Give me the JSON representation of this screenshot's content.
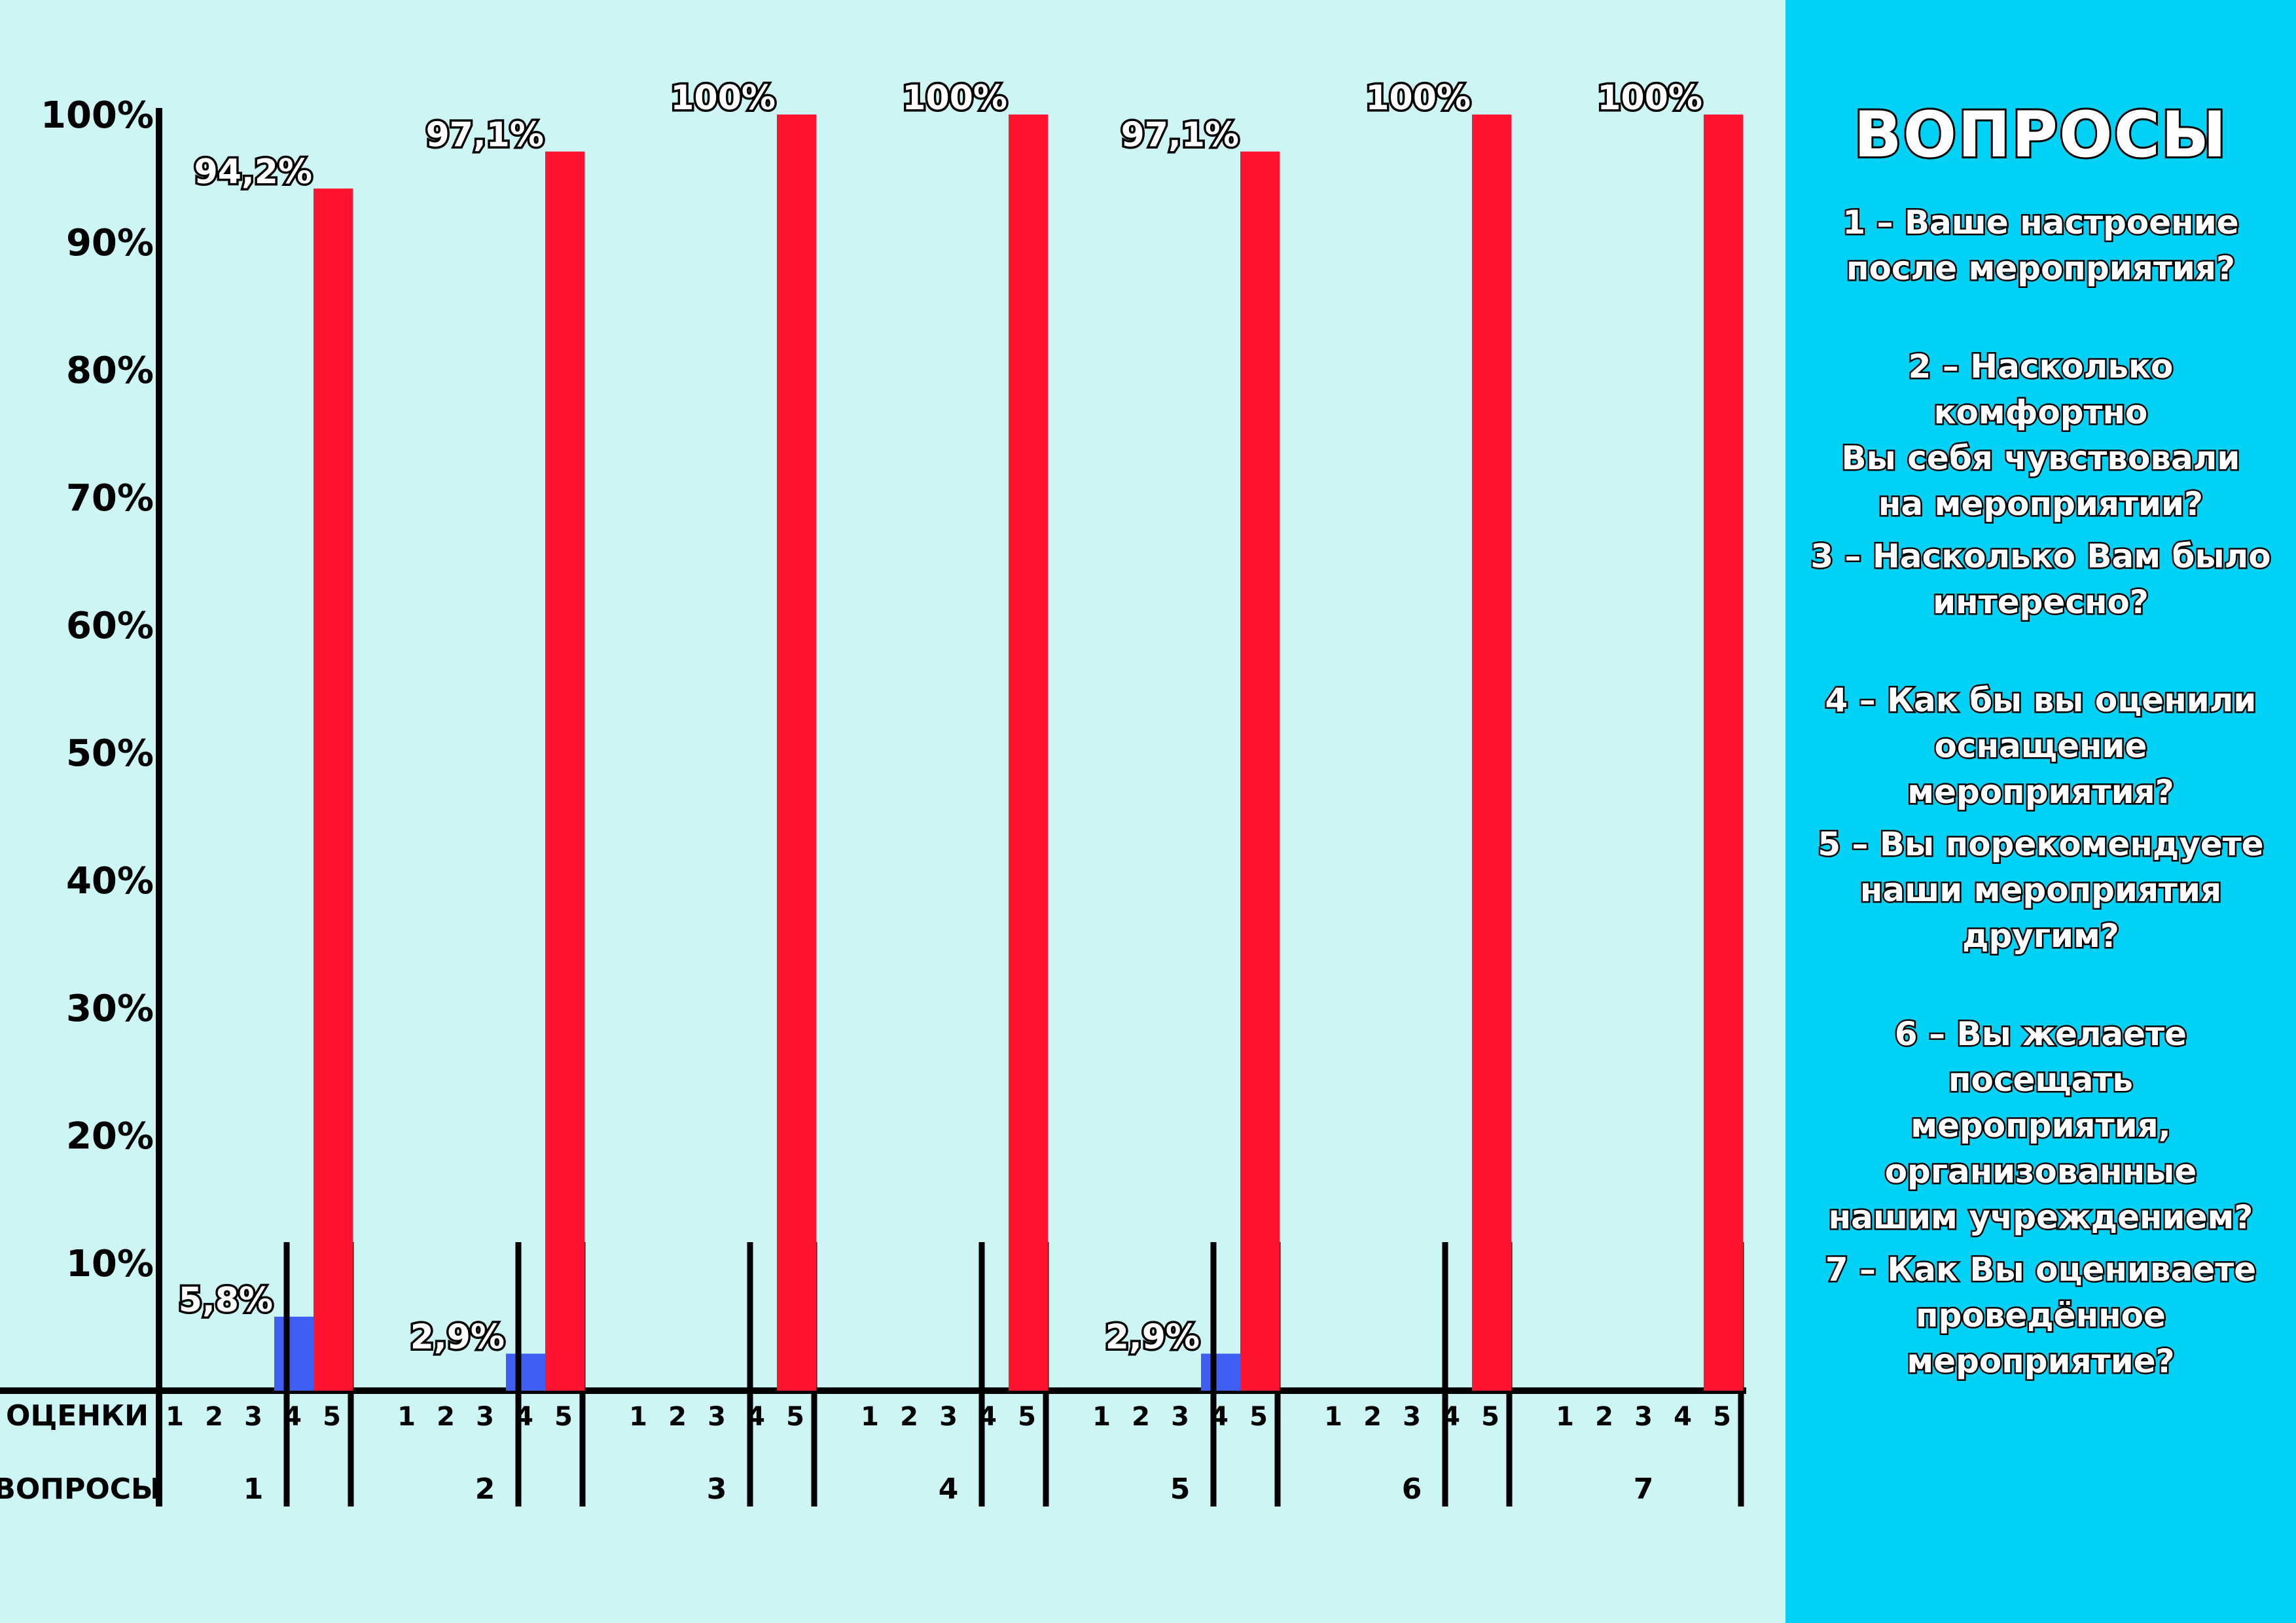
{
  "chart_data": {
    "type": "bar",
    "title": "",
    "ylim": [
      0,
      100
    ],
    "y_ticks": [
      "10%",
      "20%",
      "30%",
      "40%",
      "50%",
      "60%",
      "70%",
      "80%",
      "90%",
      "100%"
    ],
    "row_labels": {
      "scores": "ОЦЕНКИ",
      "questions": "ВОПРОСЫ"
    },
    "score_ticks": [
      "1",
      "2",
      "3",
      "4",
      "5"
    ],
    "groups": [
      {
        "label": "1",
        "values": [
          0,
          0,
          0,
          5.8,
          94.2
        ],
        "labels": [
          "",
          "",
          "",
          "5,8%",
          "94,2%"
        ]
      },
      {
        "label": "2",
        "values": [
          0,
          0,
          0,
          2.9,
          97.1
        ],
        "labels": [
          "",
          "",
          "",
          "2,9%",
          "97,1%"
        ]
      },
      {
        "label": "3",
        "values": [
          0,
          0,
          0,
          0,
          100
        ],
        "labels": [
          "",
          "",
          "",
          "",
          "100%"
        ]
      },
      {
        "label": "4",
        "values": [
          0,
          0,
          0,
          0,
          100
        ],
        "labels": [
          "",
          "",
          "",
          "",
          "100%"
        ]
      },
      {
        "label": "5",
        "values": [
          0,
          0,
          0,
          2.9,
          97.1
        ],
        "labels": [
          "",
          "",
          "",
          "2,9%",
          "97,1%"
        ]
      },
      {
        "label": "6",
        "values": [
          0,
          0,
          0,
          0,
          100
        ],
        "labels": [
          "",
          "",
          "",
          "",
          "100%"
        ]
      },
      {
        "label": "7",
        "values": [
          0,
          0,
          0,
          0,
          100
        ],
        "labels": [
          "",
          "",
          "",
          "",
          "100%"
        ]
      }
    ],
    "colors": {
      "score_4": "#3f5ef2",
      "score_5": "#ff1430"
    },
    "legend": "right"
  },
  "legend": {
    "title": "ВОПРОСЫ",
    "items": [
      "1 – Ваше настроение\nпосле мероприятия?",
      "2 – Насколько комфортно\nВы себя чувствовали\nна мероприятии?",
      "3 – Насколько Вам было\nинтересно?",
      "4 – Как бы вы оценили\nоснащение мероприятия?",
      "5 – Вы порекомендуете\nнаши мероприятия\nдругим?",
      "6 – Вы желаете посещать\nмероприятия,\nорганизованные\nнашим учреждением?",
      "7 – Как Вы оцениваете\nпроведённое\nмероприятие?"
    ]
  },
  "colors": {
    "chart_bg": "#ccf5f3",
    "panel_bg": "#00d1f5"
  }
}
